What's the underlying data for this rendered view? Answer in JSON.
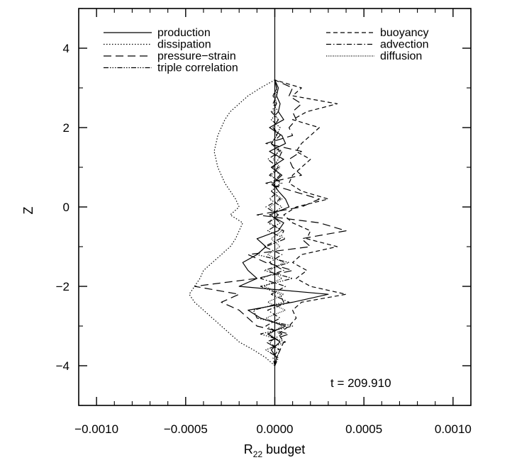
{
  "chart_data": {
    "type": "line",
    "title": "",
    "xlabel": "R",
    "xlabel_subscript": "22",
    "xlabel_suffix": "budget",
    "ylabel": "Z",
    "xlim": [
      -0.0011,
      0.0011
    ],
    "ylim": [
      -5,
      5
    ],
    "x_ticks": [
      -0.001,
      -0.0005,
      0.0,
      0.0005,
      0.001
    ],
    "x_tick_labels": [
      "−0.0010",
      "−0.0005",
      "0.0000",
      "0.0005",
      "0.0010"
    ],
    "y_ticks": [
      -4,
      -2,
      0,
      2,
      4
    ],
    "y_tick_labels": [
      "−4",
      "−2",
      "0",
      "2",
      "4"
    ],
    "grid": false,
    "annotation": "t  =  209.910",
    "legend_left": [
      "production",
      "dissipation",
      "pressure−strain",
      "triple correlation"
    ],
    "legend_right": [
      "buoyancy",
      "advection",
      "diffusion"
    ],
    "z_profile": [
      -4.0,
      -3.8,
      -3.6,
      -3.4,
      -3.2,
      -3.0,
      -2.8,
      -2.6,
      -2.4,
      -2.2,
      -2.0,
      -1.8,
      -1.6,
      -1.4,
      -1.2,
      -1.0,
      -0.8,
      -0.6,
      -0.4,
      -0.2,
      0.0,
      0.2,
      0.4,
      0.6,
      0.8,
      1.0,
      1.2,
      1.4,
      1.6,
      1.8,
      2.0,
      2.2,
      2.4,
      2.6,
      2.8,
      3.0,
      3.2
    ],
    "series": [
      {
        "name": "production",
        "dash": "",
        "values": [
          0.0,
          1e-05,
          -2e-05,
          3e-05,
          -4e-05,
          6e-05,
          -8e-05,
          -0.00015,
          0.0001,
          0.0003,
          -0.0002,
          -0.0001,
          -0.00015,
          -0.00018,
          -0.0001,
          -5e-05,
          -0.0001,
          2e-05,
          5e-05,
          -3e-05,
          8e-05,
          6e-05,
          2e-05,
          -1e-05,
          4e-05,
          -2e-05,
          5e-05,
          -3e-05,
          6e-05,
          4e-05,
          -3e-05,
          5e-05,
          2e-05,
          3e-05,
          1e-05,
          2e-05,
          0.0
        ]
      },
      {
        "name": "dissipation",
        "dash": "1.5,2.5",
        "values": [
          0.0,
          -5e-05,
          -0.00012,
          -0.0002,
          -0.00025,
          -0.0003,
          -0.00035,
          -0.0004,
          -0.00045,
          -0.00048,
          -0.00045,
          -0.00042,
          -0.0004,
          -0.00035,
          -0.0003,
          -0.00025,
          -0.00022,
          -0.0002,
          -0.00018,
          -0.00025,
          -0.0002,
          -0.00022,
          -0.00025,
          -0.00028,
          -0.0003,
          -0.00032,
          -0.00033,
          -0.00034,
          -0.00033,
          -0.00032,
          -0.0003,
          -0.00028,
          -0.00025,
          -0.0002,
          -0.00015,
          -8e-05,
          0.0
        ]
      },
      {
        "name": "pressure−strain",
        "dash": "11,6",
        "values": [
          0.0,
          1e-05,
          3e-05,
          -5e-05,
          8e-05,
          -0.0001,
          -0.00015,
          -0.0002,
          -0.0003,
          -0.0002,
          -0.00045,
          -0.0001,
          0.0001,
          -5e-05,
          -0.00015,
          0.0002,
          0.00015,
          0.0004,
          0.00025,
          -0.0001,
          0.00015,
          0.00025,
          0.0001,
          -5e-05,
          0.00015,
          0.0001,
          8e-05,
          0.00015,
          -5e-05,
          0.0001,
          8e-05,
          0.00012,
          0.0001,
          0.00015,
          8e-05,
          0.0001,
          0.0
        ]
      },
      {
        "name": "triple correlation",
        "dash": "7,2,1.5,2,1.5,2,1.5,2",
        "values": [
          0.0,
          2e-05,
          -5e-05,
          6e-05,
          -8e-05,
          0.0001,
          -0.0001,
          -0.00012,
          5e-05,
          3e-05,
          -8e-05,
          0.0001,
          -6e-05,
          8e-05,
          -0.0001,
          -5e-05,
          6e-05,
          -4e-05,
          3e-05,
          -2e-05,
          4e-05,
          -3e-05,
          2e-05,
          -2e-05,
          3e-05,
          -1e-05,
          2e-05,
          4e-05,
          -2e-05,
          1e-05,
          3e-05,
          -2e-05,
          2e-05,
          -1e-05,
          1e-05,
          1e-05,
          0.0
        ]
      },
      {
        "name": "buoyancy",
        "dash": "6,4",
        "values": [
          0.0,
          1e-05,
          3e-05,
          5e-05,
          2e-05,
          8e-05,
          0.00012,
          0.0001,
          0.00015,
          0.0004,
          0.0002,
          0.00012,
          0.00018,
          0.0001,
          0.00015,
          0.00035,
          0.00018,
          0.0002,
          0.0001,
          5e-05,
          0.00012,
          0.0003,
          0.00015,
          8e-05,
          0.0001,
          0.00015,
          0.0002,
          0.00012,
          0.00015,
          0.0002,
          0.00025,
          0.0001,
          0.00018,
          0.00035,
          0.0001,
          0.00015,
          0.0
        ]
      },
      {
        "name": "advection",
        "dash": "7,3,1.5,3",
        "values": [
          0.0,
          -1e-05,
          2e-05,
          -3e-05,
          4e-05,
          -5e-05,
          3e-05,
          -4e-05,
          8e-05,
          -2e-05,
          6e-05,
          -8e-05,
          5e-05,
          -3e-05,
          4e-05,
          -6e-05,
          3e-05,
          5e-05,
          -4e-05,
          2e-05,
          -5e-05,
          3e-05,
          -2e-05,
          4e-05,
          -3e-05,
          2e-05,
          -4e-05,
          3e-05,
          -2e-05,
          3e-05,
          -1e-05,
          2e-05,
          -2e-05,
          1e-05,
          -1e-05,
          1e-05,
          0.0
        ]
      },
      {
        "name": "diffusion",
        "dash": "1,1.5",
        "values": [
          0.0,
          1e-05,
          -2e-05,
          3e-05,
          -3e-05,
          4e-05,
          -5e-05,
          6e-05,
          -4e-05,
          5e-05,
          -6e-05,
          4e-05,
          -3e-05,
          5e-05,
          -4e-05,
          3e-05,
          -2e-05,
          4e-05,
          -3e-05,
          2e-05,
          -3e-05,
          4e-05,
          -2e-05,
          3e-05,
          -2e-05,
          3e-05,
          -1e-05,
          2e-05,
          -2e-05,
          1e-05,
          -1e-05,
          2e-05,
          -1e-05,
          1e-05,
          0.0,
          1e-05,
          0.0
        ]
      }
    ]
  }
}
